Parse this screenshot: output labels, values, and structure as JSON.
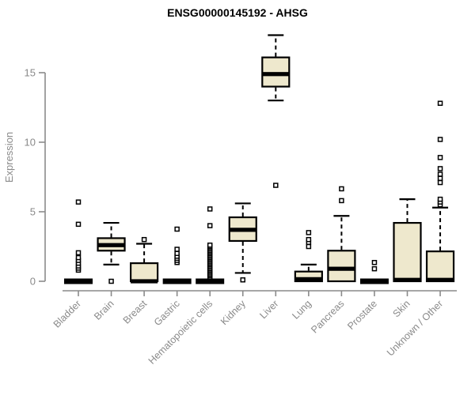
{
  "colors": {
    "box_fill": "#eee8cd",
    "box_stroke": "#000000",
    "axis": "#8a8a8a",
    "label_text": "#8a8a8a",
    "title_text": "#000000"
  },
  "chart_data": {
    "type": "boxplot",
    "title": "ENSG00000145192 - AHSG",
    "xlabel": "",
    "ylabel": "Expression",
    "yticks": [
      0,
      5,
      10,
      15
    ],
    "ylim": [
      0,
      17.8
    ],
    "grid": false,
    "legend": "none",
    "categories": [
      "Bladder",
      "Brain",
      "Breast",
      "Gastric",
      "Hematopoietic cells",
      "Kidney",
      "Liver",
      "Lung",
      "Pancreas",
      "Prostate",
      "Skin",
      "Unknown / Other"
    ],
    "boxes": [
      {
        "category": "Bladder",
        "low": 0,
        "q1": 0,
        "median": 0,
        "q3": 0,
        "high": 0,
        "outliers": [
          0.8,
          0.95,
          1.1,
          1.3,
          1.5,
          1.7,
          2.05,
          4.1,
          5.7
        ]
      },
      {
        "category": "Brain",
        "low": 1.2,
        "q1": 2.2,
        "median": 2.6,
        "q3": 3.1,
        "high": 4.2,
        "outliers": [
          0
        ]
      },
      {
        "category": "Breast",
        "low": 0,
        "q1": 0,
        "median": 0,
        "q3": 1.3,
        "high": 2.7,
        "outliers": [
          3.0
        ]
      },
      {
        "category": "Gastric",
        "low": 0,
        "q1": 0,
        "median": 0,
        "q3": 0,
        "high": 0,
        "outliers": [
          1.35,
          1.5,
          1.65,
          1.8,
          2.0,
          2.3,
          3.75
        ]
      },
      {
        "category": "Hematopoietic cells",
        "low": 0,
        "q1": 0,
        "median": 0,
        "q3": 0,
        "high": 0,
        "outliers": [
          0.3,
          0.4,
          0.5,
          0.6,
          0.7,
          0.8,
          0.9,
          1.0,
          1.1,
          1.2,
          1.3,
          1.4,
          1.5,
          1.6,
          1.7,
          1.8,
          1.9,
          2.0,
          2.1,
          2.2,
          2.3,
          2.4,
          2.5,
          2.6,
          4.0,
          5.2
        ]
      },
      {
        "category": "Kidney",
        "low": 0.6,
        "q1": 2.9,
        "median": 3.7,
        "q3": 4.6,
        "high": 5.6,
        "outliers": [
          0.1
        ]
      },
      {
        "category": "Liver",
        "low": 13.0,
        "q1": 14.0,
        "median": 14.9,
        "q3": 16.1,
        "high": 17.7,
        "outliers": [
          6.9
        ]
      },
      {
        "category": "Lung",
        "low": 0,
        "q1": 0,
        "median": 0.15,
        "q3": 0.7,
        "high": 1.2,
        "outliers": [
          2.5,
          2.8,
          3.0,
          3.5
        ]
      },
      {
        "category": "Pancreas",
        "low": 0,
        "q1": 0,
        "median": 0.9,
        "q3": 2.2,
        "high": 4.7,
        "outliers": [
          5.8,
          6.65
        ]
      },
      {
        "category": "Prostate",
        "low": 0,
        "q1": 0,
        "median": 0,
        "q3": 0,
        "high": 0,
        "outliers": [
          0.9,
          1.35
        ]
      },
      {
        "category": "Skin",
        "low": 0,
        "q1": 0,
        "median": 0.1,
        "q3": 4.2,
        "high": 5.9,
        "outliers": []
      },
      {
        "category": "Unknown / Other",
        "low": 0,
        "q1": 0,
        "median": 0.1,
        "q3": 2.15,
        "high": 5.3,
        "outliers": [
          5.5,
          5.7,
          5.9,
          7.1,
          7.4,
          7.7,
          8.1,
          8.9,
          10.2,
          12.8
        ]
      }
    ]
  }
}
